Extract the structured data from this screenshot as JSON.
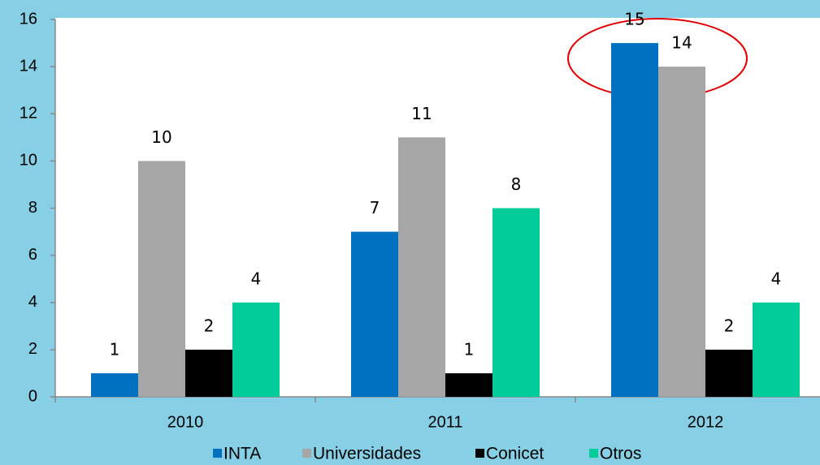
{
  "chart_data": {
    "type": "bar",
    "categories": [
      "2010",
      "2011",
      "2012"
    ],
    "series": [
      {
        "name": "INTA",
        "color": "#0070c0",
        "values": [
          1,
          7,
          15
        ]
      },
      {
        "name": "Universidades",
        "color": "#a6a6a6",
        "values": [
          10,
          11,
          14
        ]
      },
      {
        "name": "Conicet",
        "color": "#000000",
        "values": [
          2,
          1,
          2
        ]
      },
      {
        "name": "Otros",
        "color": "#00cc99",
        "values": [
          4,
          8,
          4
        ]
      }
    ],
    "ylim": [
      0,
      16
    ],
    "yticks": [
      0,
      2,
      4,
      6,
      8,
      10,
      12,
      14,
      16
    ],
    "grid": false,
    "legend": "bottom"
  }
}
